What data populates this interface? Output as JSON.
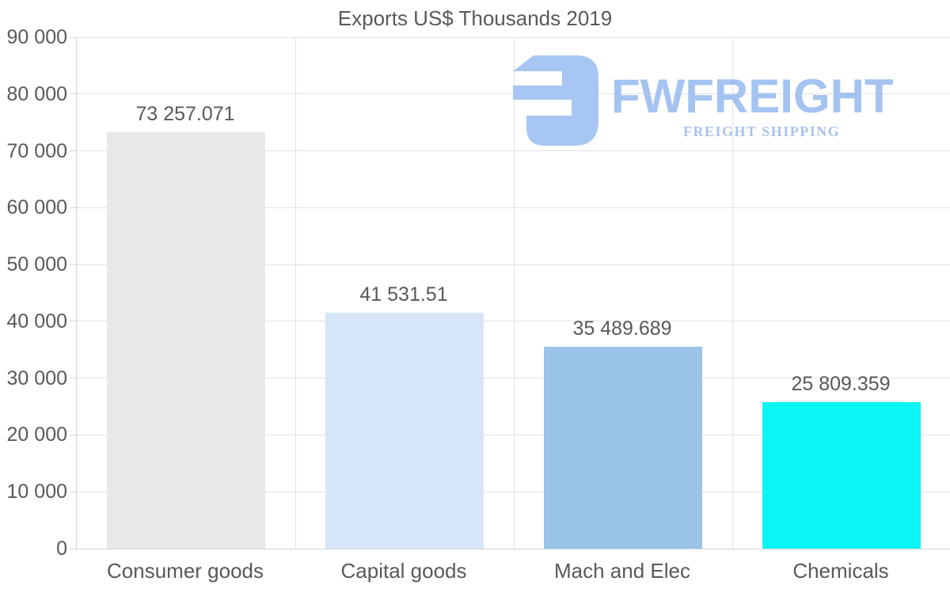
{
  "logo": {
    "wordmark": "FWFREIGHT",
    "tagline": "FREIGHT SHIPPING",
    "wordmark_color": "#a4c3f1",
    "tagline_color": "#a9c3ed",
    "icon_color": "#a8c6f3"
  },
  "colors": {
    "text": "#595959",
    "gridline": "#e2e2e2",
    "axis": "#d3d3d3",
    "background": "#ffffff"
  },
  "chart_data": {
    "type": "bar",
    "title": "Exports US$ Thousands 2019",
    "categories": [
      "Consumer goods",
      "Capital goods",
      "Mach and Elec",
      "Chemicals"
    ],
    "values": [
      73257.071,
      41531.51,
      35489.689,
      25809.359
    ],
    "value_labels": [
      "73 257.071",
      "41 531.51",
      "35 489.689",
      "25 809.359"
    ],
    "bar_colors": [
      "#e8e8e8",
      "#d6e6f8",
      "#9ac4e8",
      "#0af5f5"
    ],
    "xlabel": "",
    "ylabel": "",
    "ylim": [
      0,
      90000
    ],
    "ytick_step": 10000,
    "ytick_labels": [
      "0",
      "10 000",
      "20 000",
      "30 000",
      "40 000",
      "50 000",
      "60 000",
      "70 000",
      "80 000",
      "90 000"
    ],
    "grid": true,
    "legend": false
  }
}
